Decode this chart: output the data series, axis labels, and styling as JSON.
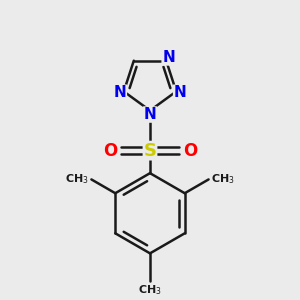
{
  "background_color": "#ebebeb",
  "bond_color": "#1a1a1a",
  "bond_width": 1.8,
  "atom_colors": {
    "N": "#0000ee",
    "S": "#cccc00",
    "O": "#ff0000",
    "C": "#1a1a1a"
  },
  "font_size_atom": 11,
  "font_size_small": 9,
  "xlim": [
    -2.0,
    2.0
  ],
  "ylim": [
    -3.2,
    2.4
  ]
}
